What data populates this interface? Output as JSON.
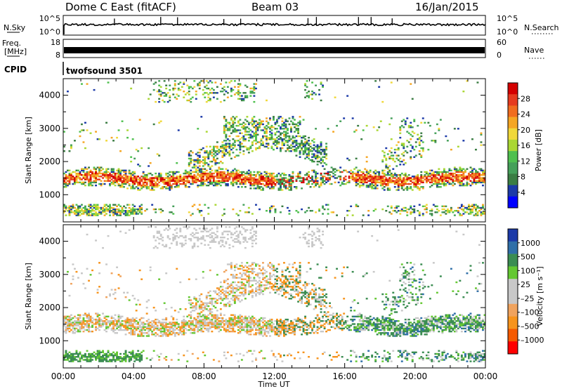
{
  "header": {
    "station": "Dome C East (fitACF)",
    "beam": "Beam 03",
    "date": "16/Jan/2015"
  },
  "strip": {
    "nsky_label": "N.Sky",
    "nsky_ticks": [
      "10^5",
      "10^0"
    ],
    "nsearch_label": "N.Search",
    "nsearch_ticks": [
      "10^5",
      "10^0"
    ],
    "freq_label_1": "Freq.",
    "freq_label_2": "[MHz]",
    "freq_ticks": [
      "18",
      "8"
    ],
    "nave_label": "Nave",
    "nave_ticks": [
      "60",
      "0"
    ],
    "cpid_label": "CPID",
    "cpid_value": "twofsound 3501"
  },
  "chart_data": [
    {
      "type": "heatmap",
      "name": "power-panel",
      "ylabel": "Slant Range [km]",
      "x_ticks": [
        "00:00",
        "04:00",
        "08:00",
        "12:00",
        "16:00",
        "20:00",
        "00:00"
      ],
      "y_ticks": [
        "1000",
        "2000",
        "3000",
        "4000"
      ],
      "xlim_hours": [
        0,
        24
      ],
      "ylim_km": [
        180,
        4500
      ],
      "colorbar_label": "Power [dB]",
      "colorbar_ticks": [
        "28",
        "24",
        "20",
        "16",
        "12",
        "8",
        "4"
      ],
      "colors": [
        "#0000ff",
        "#1c3aa8",
        "#3b7d43",
        "#45a05a",
        "#4fc04f",
        "#aad733",
        "#f0d83a",
        "#f5a623",
        "#f06d1f",
        "#e63b1f",
        "#d40000"
      ],
      "value_range": [
        0,
        30
      ],
      "grid": false
    },
    {
      "type": "heatmap",
      "name": "velocity-panel",
      "ylabel": "Slant Range [km]",
      "xlabel": "Time UT",
      "x_ticks": [
        "00:00",
        "04:00",
        "08:00",
        "12:00",
        "16:00",
        "20:00",
        "00:00"
      ],
      "y_ticks": [
        "1000",
        "2000",
        "3000",
        "4000"
      ],
      "xlim_hours": [
        0,
        24
      ],
      "ylim_km": [
        180,
        4500
      ],
      "colorbar_label": "Velocity [m s⁻¹]",
      "colorbar_ticks": [
        "1000",
        "500",
        "100",
        "25",
        "–25",
        "–100",
        "–500",
        "–1000"
      ],
      "colors": [
        "#ff0000",
        "#f55a00",
        "#f7941d",
        "#f0a35e",
        "#c8c8c8",
        "#c8c8c8",
        "#64c832",
        "#3b8d52",
        "#2f6fa8",
        "#1c3aa8"
      ],
      "grid": false
    }
  ]
}
